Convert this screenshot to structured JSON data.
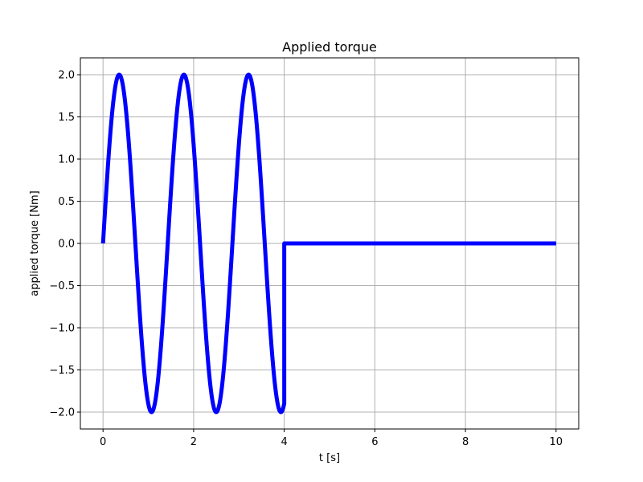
{
  "chart_data": {
    "type": "line",
    "title": "Applied torque",
    "xlabel": "t [s]",
    "ylabel": "applied torque [Nm]",
    "xlim": [
      -0.5,
      10.5
    ],
    "ylim": [
      -2.2,
      2.2
    ],
    "xticks": [
      0,
      2,
      4,
      6,
      8,
      10
    ],
    "xtick_labels": [
      "0",
      "2",
      "4",
      "6",
      "8",
      "10"
    ],
    "yticks": [
      -2.0,
      -1.5,
      -1.0,
      -0.5,
      0.0,
      0.5,
      1.0,
      1.5,
      2.0
    ],
    "ytick_labels": [
      "−2.0",
      "−1.5",
      "−1.0",
      "−0.5",
      "0.0",
      "0.5",
      "1.0",
      "1.5",
      "2.0"
    ],
    "grid": true,
    "series": [
      {
        "color": "#0000ff",
        "description_function": "2*sin(4.4*t) for 0<=t<4, then 0",
        "x": [
          0,
          4,
          4,
          10
        ],
        "y_definition": "amplitude 2, period ~1.43 s until t=4, then 0 to t=10"
      }
    ]
  }
}
